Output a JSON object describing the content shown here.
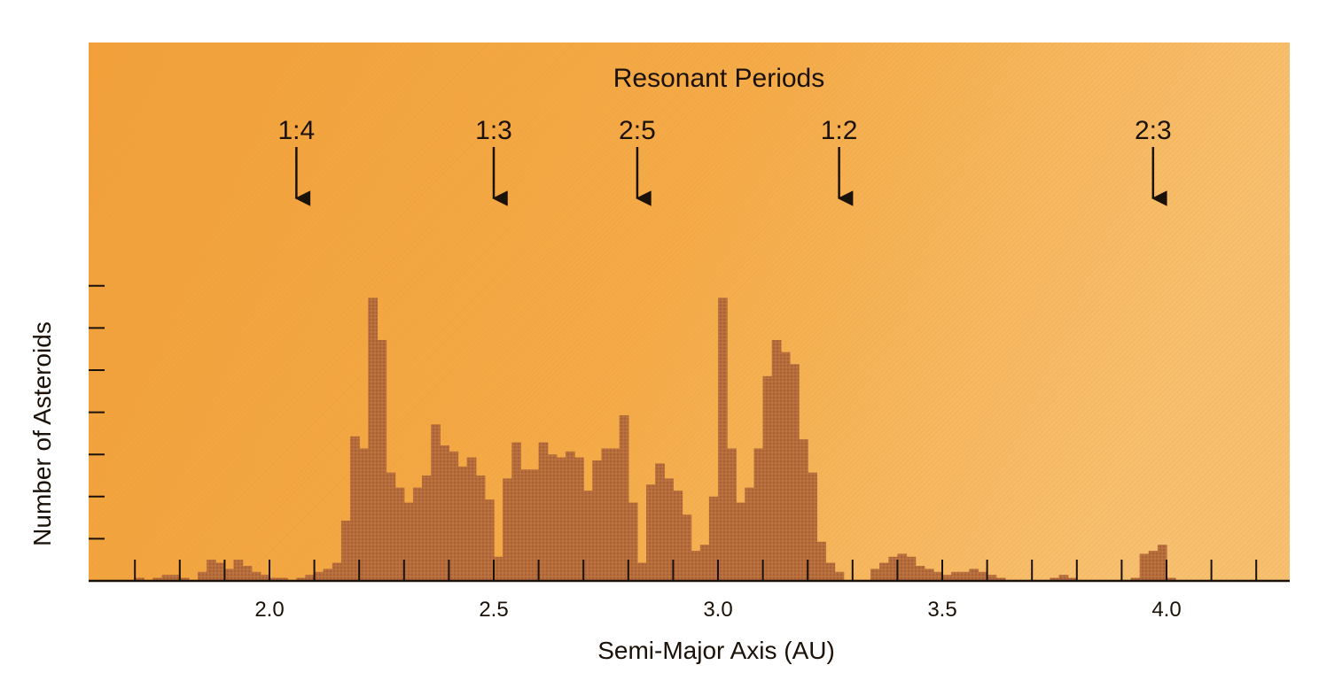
{
  "chart_data": {
    "type": "bar",
    "title": "Resonant Periods",
    "xlabel": "Semi-Major Axis (AU)",
    "ylabel": "Number of Asteroids",
    "xlim": [
      1.6,
      4.3
    ],
    "ylim": [
      0,
      100
    ],
    "grid": false,
    "x_ticks": [
      2.0,
      2.5,
      3.0,
      3.5,
      4.0
    ],
    "x_tick_labels": [
      "2.0",
      "2.5",
      "3.0",
      "3.5",
      "4.0"
    ],
    "bin_width": 0.02,
    "bins": [
      [
        1.7,
        1
      ],
      [
        1.72,
        0
      ],
      [
        1.74,
        1
      ],
      [
        1.76,
        2
      ],
      [
        1.78,
        2
      ],
      [
        1.8,
        1
      ],
      [
        1.82,
        0
      ],
      [
        1.84,
        3
      ],
      [
        1.86,
        7
      ],
      [
        1.88,
        6
      ],
      [
        1.9,
        4
      ],
      [
        1.92,
        7
      ],
      [
        1.94,
        5
      ],
      [
        1.96,
        3
      ],
      [
        1.98,
        2
      ],
      [
        2.0,
        1
      ],
      [
        2.02,
        1
      ],
      [
        2.04,
        0
      ],
      [
        2.06,
        1
      ],
      [
        2.08,
        2
      ],
      [
        2.1,
        3
      ],
      [
        2.12,
        4
      ],
      [
        2.14,
        6
      ],
      [
        2.16,
        20
      ],
      [
        2.18,
        48
      ],
      [
        2.2,
        44
      ],
      [
        2.22,
        94
      ],
      [
        2.24,
        80
      ],
      [
        2.26,
        36
      ],
      [
        2.28,
        31
      ],
      [
        2.3,
        26
      ],
      [
        2.32,
        31
      ],
      [
        2.34,
        35
      ],
      [
        2.36,
        52
      ],
      [
        2.38,
        45
      ],
      [
        2.4,
        43
      ],
      [
        2.42,
        38
      ],
      [
        2.44,
        41
      ],
      [
        2.46,
        35
      ],
      [
        2.48,
        27
      ],
      [
        2.5,
        8
      ],
      [
        2.52,
        34
      ],
      [
        2.54,
        46
      ],
      [
        2.56,
        37
      ],
      [
        2.58,
        37
      ],
      [
        2.6,
        46
      ],
      [
        2.62,
        42
      ],
      [
        2.64,
        41
      ],
      [
        2.66,
        43
      ],
      [
        2.68,
        41
      ],
      [
        2.7,
        30
      ],
      [
        2.72,
        40
      ],
      [
        2.74,
        44
      ],
      [
        2.76,
        44
      ],
      [
        2.78,
        55
      ],
      [
        2.8,
        26
      ],
      [
        2.82,
        6
      ],
      [
        2.84,
        32
      ],
      [
        2.86,
        39
      ],
      [
        2.88,
        34
      ],
      [
        2.9,
        30
      ],
      [
        2.92,
        22
      ],
      [
        2.94,
        10
      ],
      [
        2.96,
        12
      ],
      [
        2.98,
        28
      ],
      [
        3.0,
        94
      ],
      [
        3.02,
        44
      ],
      [
        3.04,
        26
      ],
      [
        3.06,
        31
      ],
      [
        3.08,
        44
      ],
      [
        3.1,
        68
      ],
      [
        3.12,
        80
      ],
      [
        3.14,
        76
      ],
      [
        3.16,
        72
      ],
      [
        3.18,
        47
      ],
      [
        3.2,
        36
      ],
      [
        3.22,
        13
      ],
      [
        3.24,
        6
      ],
      [
        3.26,
        3
      ],
      [
        3.28,
        0
      ],
      [
        3.3,
        0
      ],
      [
        3.32,
        0
      ],
      [
        3.34,
        4
      ],
      [
        3.36,
        6
      ],
      [
        3.38,
        8
      ],
      [
        3.4,
        9
      ],
      [
        3.42,
        8
      ],
      [
        3.44,
        5
      ],
      [
        3.46,
        4
      ],
      [
        3.48,
        3
      ],
      [
        3.5,
        2
      ],
      [
        3.52,
        3
      ],
      [
        3.54,
        3
      ],
      [
        3.56,
        4
      ],
      [
        3.58,
        3
      ],
      [
        3.6,
        2
      ],
      [
        3.62,
        1
      ],
      [
        3.64,
        0
      ],
      [
        3.66,
        0
      ],
      [
        3.68,
        0
      ],
      [
        3.7,
        0
      ],
      [
        3.72,
        0
      ],
      [
        3.74,
        1
      ],
      [
        3.76,
        2
      ],
      [
        3.78,
        1
      ],
      [
        3.8,
        0
      ],
      [
        3.82,
        0
      ],
      [
        3.84,
        0
      ],
      [
        3.86,
        0
      ],
      [
        3.88,
        0
      ],
      [
        3.9,
        0
      ],
      [
        3.92,
        1
      ],
      [
        3.94,
        9
      ],
      [
        3.96,
        10
      ],
      [
        3.98,
        12
      ],
      [
        4.0,
        1
      ]
    ],
    "resonances": [
      {
        "label": "1:4",
        "x": 2.06
      },
      {
        "label": "1:3",
        "x": 2.5
      },
      {
        "label": "2:5",
        "x": 2.82
      },
      {
        "label": "1:2",
        "x": 3.27
      },
      {
        "label": "2:3",
        "x": 3.97
      }
    ]
  },
  "colors": {
    "background": "#f3a53c",
    "background_light": "#f7bf66",
    "bars": "#b86d3b",
    "bars_dark": "#9c5a32",
    "ink": "#1a1108"
  }
}
